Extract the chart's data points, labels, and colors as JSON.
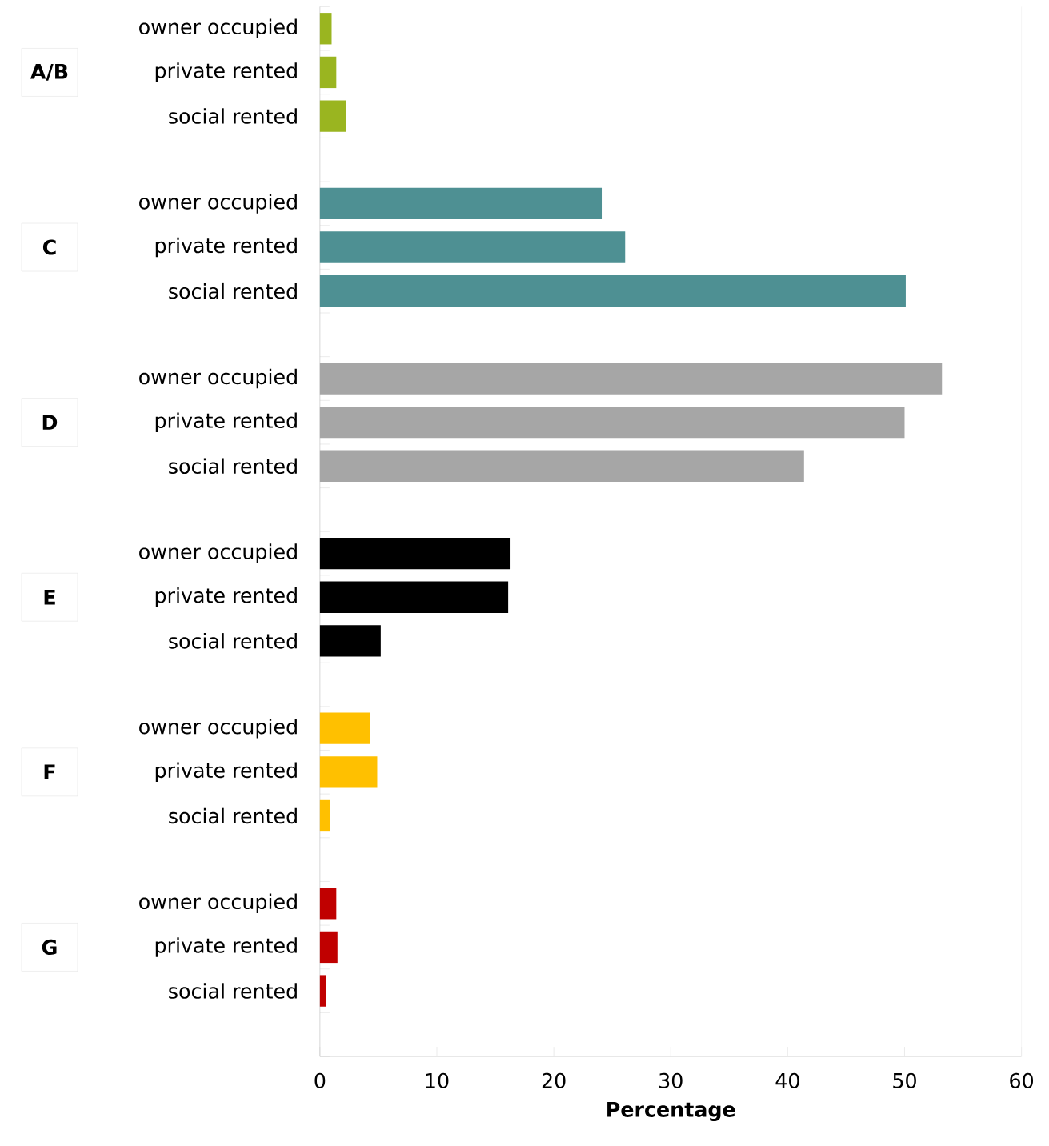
{
  "chart_data": {
    "type": "bar",
    "orientation": "horizontal",
    "xlabel": "Percentage",
    "categories": [
      "owner occupied",
      "private rented",
      "social rented",
      null,
      "owner occupied",
      "private rented",
      "social rented",
      null,
      "owner occupied",
      "private rented",
      "social rented",
      null,
      "owner occupied",
      "private rented",
      "social rented",
      null,
      "owner occupied",
      "private rented",
      "social rented",
      null,
      "owner occupied",
      "private rented",
      "social rented",
      null
    ],
    "values": [
      1.0,
      1.4,
      2.2,
      null,
      24.1,
      26.1,
      50.1,
      null,
      53.2,
      50.0,
      41.4,
      null,
      16.3,
      16.1,
      5.2,
      null,
      4.3,
      4.9,
      0.9,
      null,
      1.4,
      1.5,
      0.5,
      null
    ],
    "colors": [
      "#9ab520",
      "#9ab520",
      "#9ab520",
      null,
      "#4e9093",
      "#4e9093",
      "#4e9093",
      null,
      "#a6a6a6",
      "#a6a6a6",
      "#a6a6a6",
      null,
      "#000000",
      "#000000",
      "#000000",
      null,
      "#ffc000",
      "#ffc000",
      "#ffc000",
      null,
      "#c00000",
      "#c00000",
      "#c00000",
      null
    ],
    "annotations": [
      "A/B",
      "C",
      "D",
      "E",
      "F",
      "G"
    ],
    "xlim": [
      0,
      60
    ],
    "xticks": [
      0,
      10,
      20,
      30,
      40,
      50,
      60
    ],
    "grid": false
  }
}
